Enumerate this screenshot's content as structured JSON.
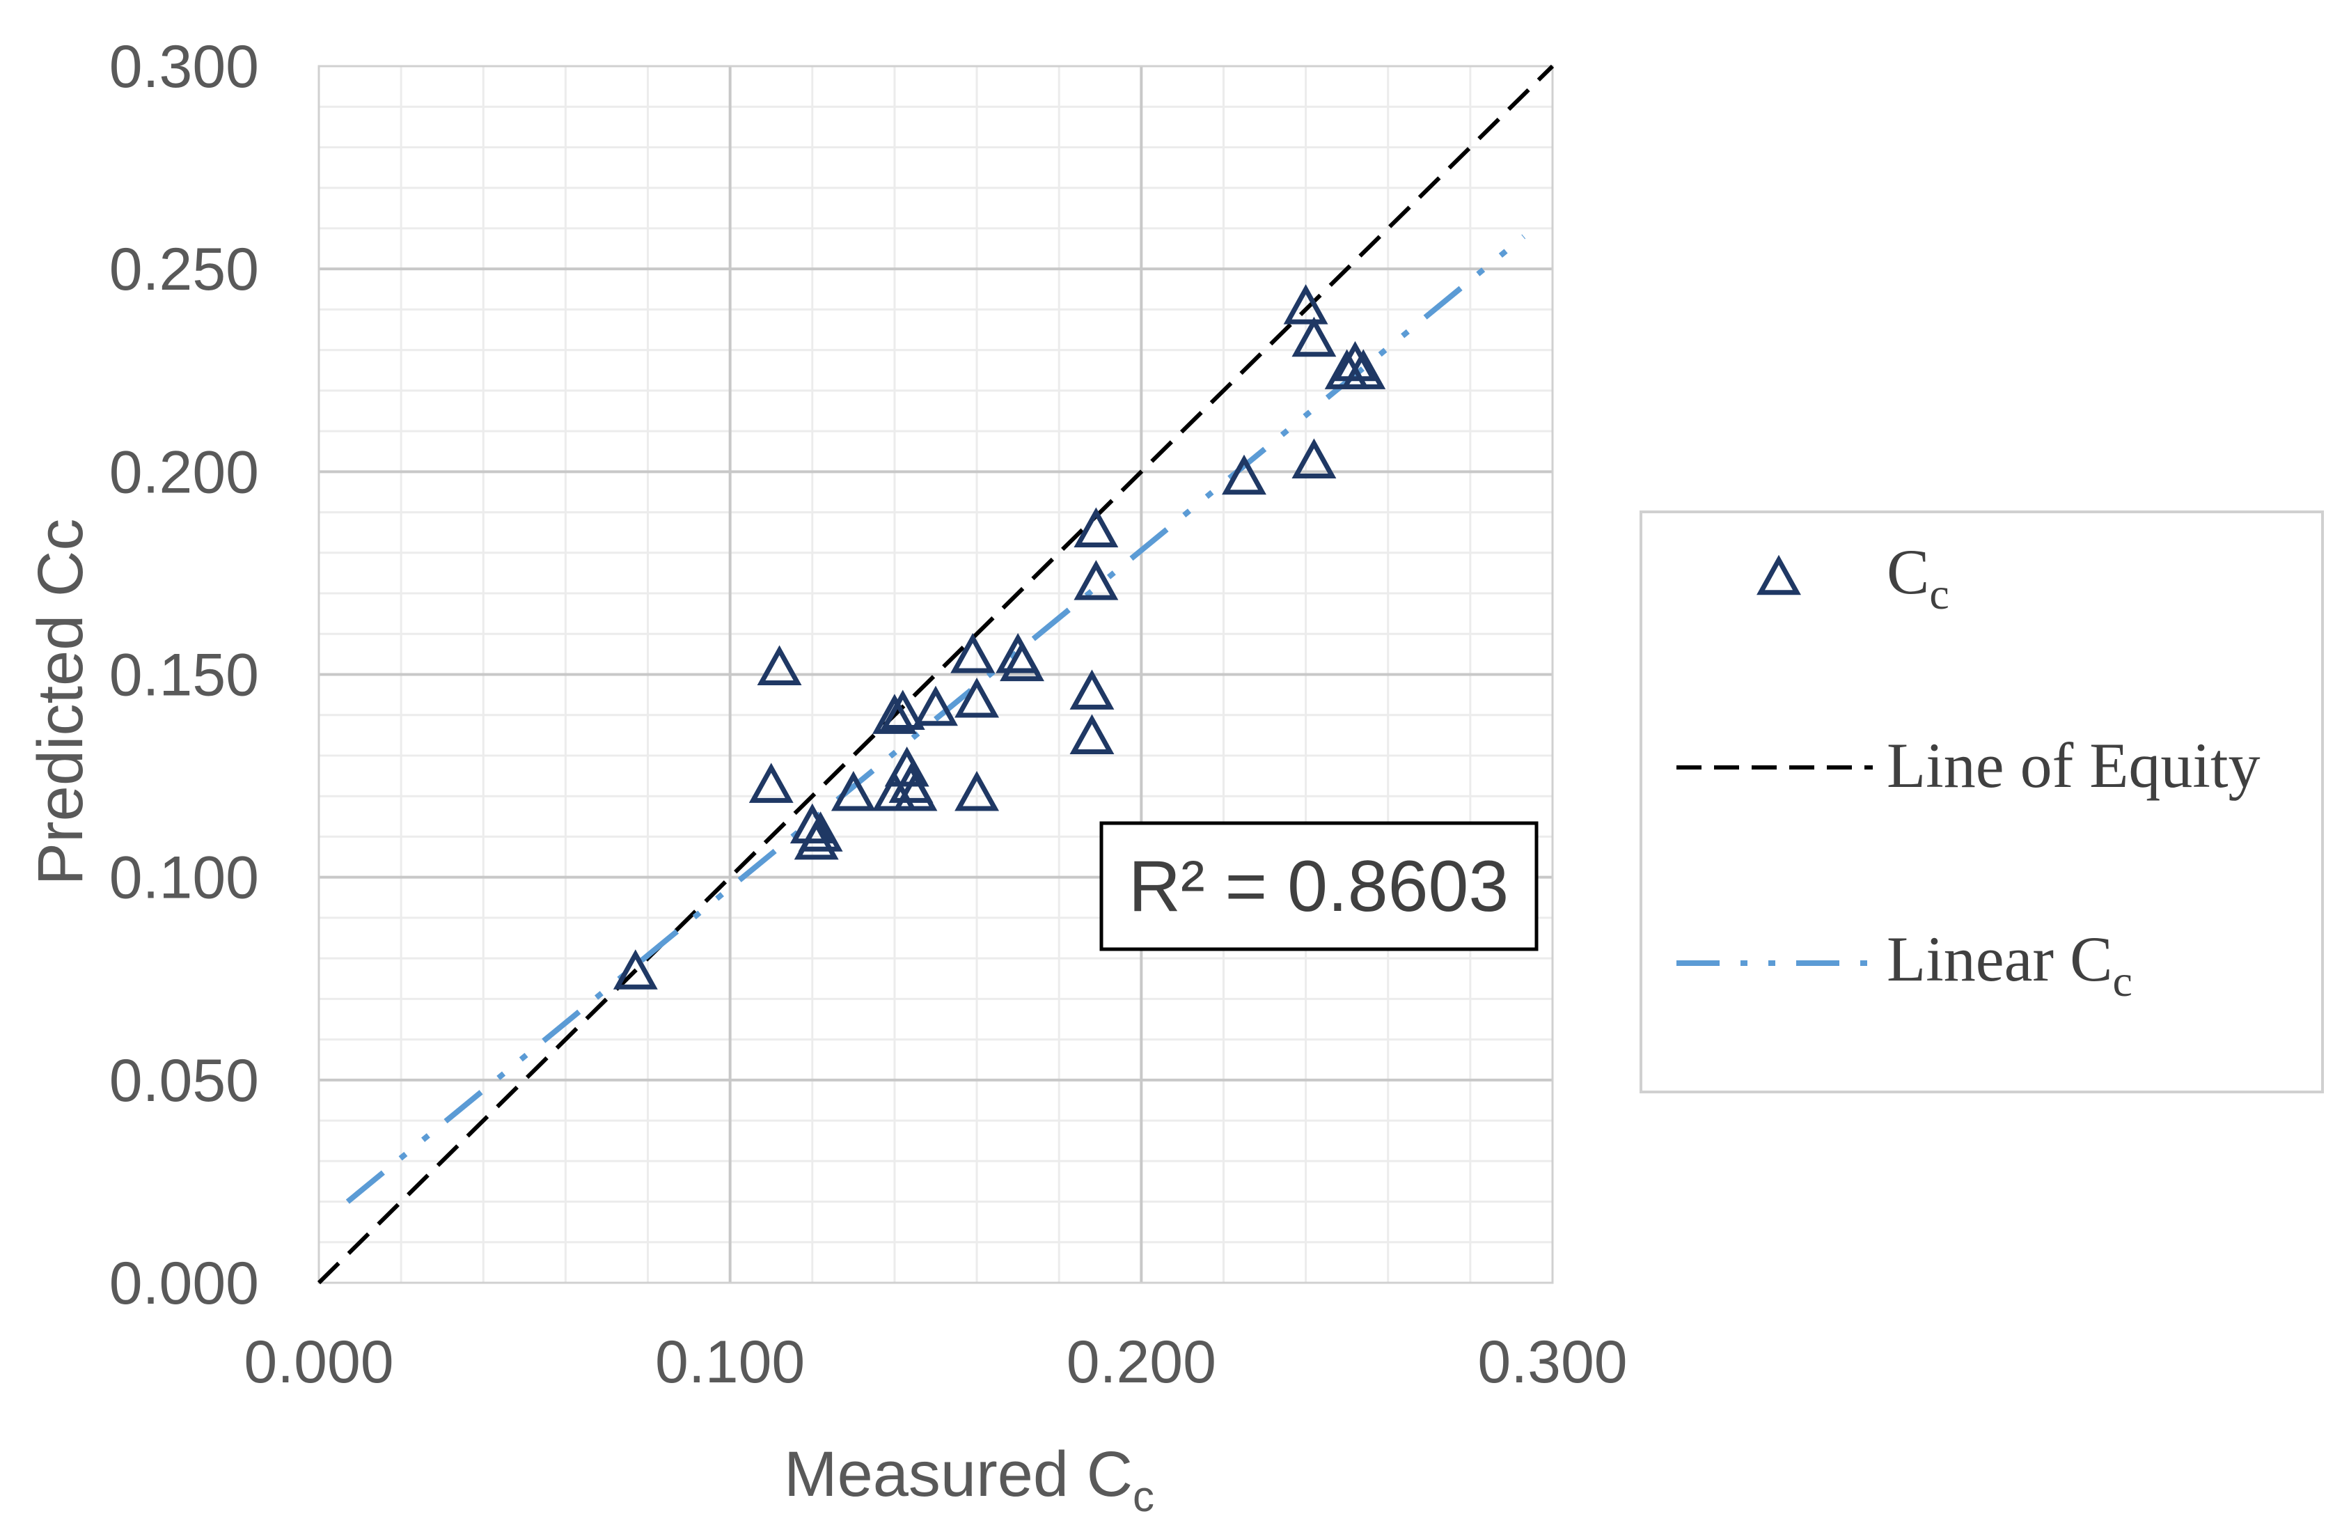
{
  "chart_data": {
    "type": "scatter",
    "xlabel": "Measured Cc",
    "xlabel_main": "Measured C",
    "xlabel_sub": "c",
    "ylabel": "Predicted Cc",
    "xlim": [
      0,
      0.3
    ],
    "ylim": [
      0,
      0.3
    ],
    "x_ticks": [
      "0.000",
      "0.100",
      "0.200",
      "0.300"
    ],
    "y_ticks": [
      "0.000",
      "0.050",
      "0.100",
      "0.150",
      "0.200",
      "0.250",
      "0.300"
    ],
    "grid": true,
    "legend_position": "right",
    "series": [
      {
        "name": "Cc",
        "name_main": "C",
        "name_sub": "c",
        "kind": "scatter",
        "marker": "triangle-open",
        "color": "#1f3864",
        "points": [
          [
            0.077,
            0.076
          ],
          [
            0.11,
            0.122
          ],
          [
            0.112,
            0.151
          ],
          [
            0.12,
            0.112
          ],
          [
            0.121,
            0.108
          ],
          [
            0.122,
            0.11
          ],
          [
            0.13,
            0.12
          ],
          [
            0.14,
            0.12
          ],
          [
            0.14,
            0.139
          ],
          [
            0.142,
            0.14
          ],
          [
            0.143,
            0.126
          ],
          [
            0.144,
            0.122
          ],
          [
            0.145,
            0.12
          ],
          [
            0.15,
            0.141
          ],
          [
            0.159,
            0.154
          ],
          [
            0.16,
            0.143
          ],
          [
            0.16,
            0.12
          ],
          [
            0.17,
            0.154
          ],
          [
            0.171,
            0.152
          ],
          [
            0.188,
            0.134
          ],
          [
            0.188,
            0.145
          ],
          [
            0.189,
            0.172
          ],
          [
            0.189,
            0.185
          ],
          [
            0.225,
            0.198
          ],
          [
            0.24,
            0.24
          ],
          [
            0.242,
            0.232
          ],
          [
            0.242,
            0.202
          ],
          [
            0.25,
            0.224
          ],
          [
            0.252,
            0.226
          ],
          [
            0.254,
            0.224
          ]
        ]
      },
      {
        "name": "Line of Equity",
        "kind": "line",
        "style": "dashed",
        "color": "#000000",
        "x": [
          0,
          0.3
        ],
        "y": [
          0,
          0.3
        ]
      },
      {
        "name": "Linear Cc",
        "name_main": "Linear C",
        "name_sub": "c",
        "kind": "line",
        "style": "dash-dot-dot",
        "color": "#5b9bd5",
        "x": [
          0.007,
          0.293
        ],
        "y": [
          0.02,
          0.258
        ]
      }
    ],
    "annotations": [
      {
        "text": "R² = 0.8603"
      }
    ]
  }
}
